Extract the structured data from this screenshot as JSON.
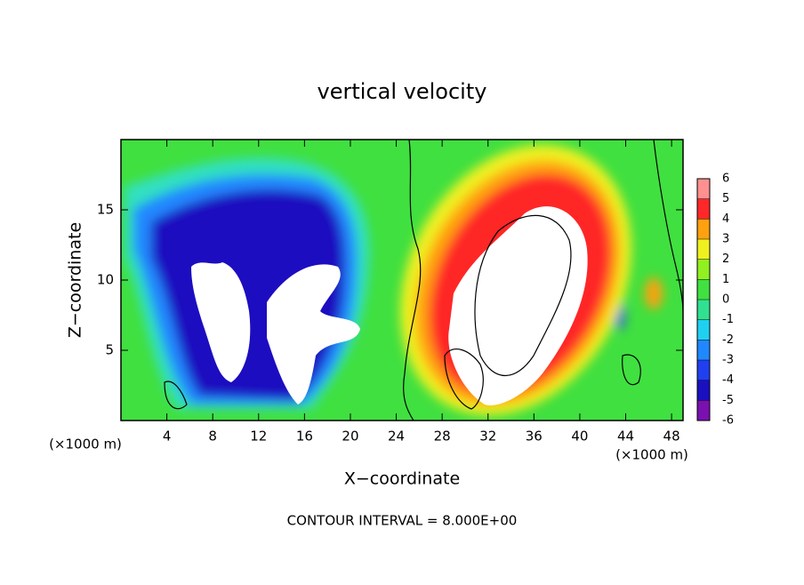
{
  "chart_data": {
    "type": "contour",
    "title": "vertical velocity",
    "x_label": "X−coordinate",
    "y_label": "Z−coordinate",
    "x_unit_left": "(×1000 m)",
    "x_unit_right": "(×1000 m)",
    "note": "CONTOUR INTERVAL = 8.000E+00",
    "xlim": [
      0,
      49
    ],
    "xticks": [
      4,
      8,
      12,
      16,
      20,
      24,
      28,
      32,
      36,
      40,
      44,
      48
    ],
    "ylim": [
      0,
      20
    ],
    "yticks": [
      5,
      10,
      15
    ],
    "colorbar": {
      "ticks": [
        -6,
        -5,
        -4,
        -3,
        -2,
        -1,
        0,
        1,
        2,
        3,
        4,
        5,
        6
      ],
      "colors": [
        "#7a10b0",
        "#1a10c0",
        "#2040f0",
        "#2088ff",
        "#20d0f0",
        "#30e090",
        "#40e040",
        "#90f020",
        "#f0f020",
        "#ffa010",
        "#ff2828",
        "#ff9090"
      ]
    }
  }
}
